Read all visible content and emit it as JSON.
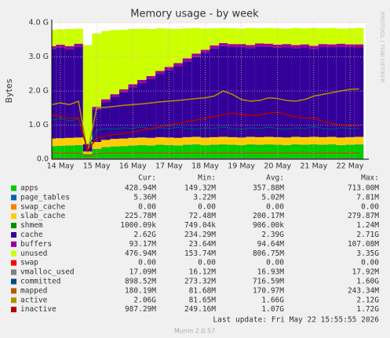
{
  "chart_data": {
    "type": "area",
    "title": "Memory usage - by week",
    "y_label": "Bytes",
    "side_note": "RRDTOOL / TOBI OETIKER",
    "footer": "Last update: Fri May 22 15:55:55 2026",
    "version": "Munin 2.0.57",
    "stat_headers": [
      "Cur:",
      "Min:",
      "Avg:",
      "Max:"
    ],
    "categories": [
      null,
      "14 May",
      null,
      null,
      null,
      "15 May",
      null,
      null,
      null,
      "16 May",
      null,
      null,
      null,
      "17 May",
      null,
      null,
      null,
      "18 May",
      null,
      null,
      null,
      "19 May",
      null,
      null,
      null,
      "20 May",
      null,
      null,
      null,
      "21 May",
      null,
      null,
      null,
      "22 May",
      null
    ],
    "ylim": [
      0,
      4
    ],
    "yticks": [
      {
        "value": 0,
        "label": "0.0"
      },
      {
        "value": 1,
        "label": "1.0 G"
      },
      {
        "value": 2,
        "label": "2.0 G"
      },
      {
        "value": 3,
        "label": "3.0 G"
      },
      {
        "value": 4,
        "label": "4.0 G"
      }
    ],
    "grid": true,
    "series": [
      {
        "name": "apps",
        "style": "area",
        "color": "#00cc00",
        "stats": [
          "428.94M",
          "149.32M",
          "357.88M",
          "713.00M"
        ],
        "values": [
          0.38,
          0.39,
          0.4,
          0.41,
          0.15,
          0.3,
          0.35,
          0.37,
          0.38,
          0.4,
          0.41,
          0.4,
          0.42,
          0.41,
          0.4,
          0.42,
          0.43,
          0.41,
          0.42,
          0.43,
          0.42,
          0.41,
          0.43,
          0.42,
          0.43,
          0.42,
          0.41,
          0.43,
          0.42,
          0.43,
          0.42,
          0.43,
          0.41,
          0.42,
          0.43
        ]
      },
      {
        "name": "page_tables",
        "style": "area",
        "color": "#0066b3",
        "stats": [
          "5.36M",
          "3.22M",
          "5.02M",
          "7.81M"
        ],
        "values": [
          0.005,
          0.005,
          0.005,
          0.005,
          0.005,
          0.005,
          0.005,
          0.005,
          0.005,
          0.005,
          0.005,
          0.005,
          0.005,
          0.005,
          0.005,
          0.005,
          0.005,
          0.005,
          0.005,
          0.005,
          0.005,
          0.005,
          0.005,
          0.005,
          0.005,
          0.005,
          0.005,
          0.005,
          0.005,
          0.005,
          0.005,
          0.005,
          0.005,
          0.005,
          0.005
        ]
      },
      {
        "name": "swap_cache",
        "style": "area",
        "color": "#ff8000",
        "stats": [
          "0.00",
          "0.00",
          "0.00",
          "0.00"
        ],
        "values": [
          0,
          0,
          0,
          0,
          0,
          0,
          0,
          0,
          0,
          0,
          0,
          0,
          0,
          0,
          0,
          0,
          0,
          0,
          0,
          0,
          0,
          0,
          0,
          0,
          0,
          0,
          0,
          0,
          0,
          0,
          0,
          0,
          0,
          0,
          0
        ]
      },
      {
        "name": "slab_cache",
        "style": "area",
        "color": "#ffcc00",
        "stats": [
          "225.78M",
          "72.48M",
          "200.17M",
          "279.87M"
        ],
        "values": [
          0.22,
          0.22,
          0.22,
          0.22,
          0.07,
          0.2,
          0.21,
          0.22,
          0.22,
          0.22,
          0.22,
          0.22,
          0.22,
          0.22,
          0.22,
          0.22,
          0.22,
          0.22,
          0.22,
          0.22,
          0.22,
          0.22,
          0.22,
          0.22,
          0.22,
          0.22,
          0.22,
          0.22,
          0.22,
          0.22,
          0.22,
          0.22,
          0.22,
          0.22,
          0.22
        ]
      },
      {
        "name": "shmem",
        "style": "area",
        "color": "#008f00",
        "stats": [
          "1000.09k",
          "749.04k",
          "906.00k",
          "1.24M"
        ],
        "values": [
          0.001,
          0.001,
          0.001,
          0.001,
          0.001,
          0.001,
          0.001,
          0.001,
          0.001,
          0.001,
          0.001,
          0.001,
          0.001,
          0.001,
          0.001,
          0.001,
          0.001,
          0.001,
          0.001,
          0.001,
          0.001,
          0.001,
          0.001,
          0.001,
          0.001,
          0.001,
          0.001,
          0.001,
          0.001,
          0.001,
          0.001,
          0.001,
          0.001,
          0.001,
          0.001
        ]
      },
      {
        "name": "cache",
        "style": "area",
        "color": "#330099",
        "stats": [
          "2.62G",
          "234.29M",
          "2.39G",
          "2.71G"
        ],
        "values": [
          2.62,
          2.65,
          2.6,
          2.66,
          0.2,
          0.95,
          1.1,
          1.22,
          1.35,
          1.48,
          1.6,
          1.72,
          1.85,
          1.98,
          2.1,
          2.22,
          2.35,
          2.48,
          2.6,
          2.66,
          2.64,
          2.65,
          2.6,
          2.66,
          2.64,
          2.62,
          2.65,
          2.6,
          2.63,
          2.58,
          2.64,
          2.62,
          2.66,
          2.63,
          2.62
        ]
      },
      {
        "name": "buffers",
        "style": "area",
        "color": "#990099",
        "stats": [
          "93.17M",
          "23.64M",
          "94.64M",
          "107.08M"
        ],
        "values": [
          0.09,
          0.09,
          0.09,
          0.09,
          0.02,
          0.08,
          0.09,
          0.09,
          0.09,
          0.09,
          0.09,
          0.09,
          0.09,
          0.09,
          0.09,
          0.09,
          0.09,
          0.09,
          0.09,
          0.09,
          0.09,
          0.09,
          0.09,
          0.09,
          0.09,
          0.09,
          0.09,
          0.09,
          0.09,
          0.09,
          0.09,
          0.09,
          0.09,
          0.09,
          0.09
        ]
      },
      {
        "name": "unused",
        "style": "area",
        "color": "#ccff00",
        "stats": [
          "476.94M",
          "153.74M",
          "806.75M",
          "3.35G"
        ],
        "values": [
          0.48,
          0.45,
          0.5,
          0.44,
          2.9,
          2.15,
          2.0,
          1.88,
          1.75,
          1.62,
          1.5,
          1.38,
          1.25,
          1.12,
          1.0,
          0.88,
          0.75,
          0.62,
          0.5,
          0.44,
          0.46,
          0.45,
          0.5,
          0.44,
          0.46,
          0.48,
          0.45,
          0.5,
          0.47,
          0.52,
          0.46,
          0.48,
          0.44,
          0.47,
          0.48
        ]
      },
      {
        "name": "swap",
        "style": "area",
        "color": "#ff0000",
        "stats": [
          "0.00",
          "0.00",
          "0.00",
          "0.00"
        ],
        "values": [
          0,
          0,
          0,
          0,
          0,
          0,
          0,
          0,
          0,
          0,
          0,
          0,
          0,
          0,
          0,
          0,
          0,
          0,
          0,
          0,
          0,
          0,
          0,
          0,
          0,
          0,
          0,
          0,
          0,
          0,
          0,
          0,
          0,
          0,
          0
        ]
      },
      {
        "name": "vmalloc_used",
        "style": "line",
        "color": "#808080",
        "stats": [
          "17.09M",
          "16.12M",
          "16.93M",
          "17.92M"
        ],
        "values": [
          0.017,
          0.017,
          0.017,
          0.017,
          0.017,
          0.017,
          0.017,
          0.017,
          0.017,
          0.017,
          0.017,
          0.017,
          0.017,
          0.017,
          0.017,
          0.017,
          0.017,
          0.017,
          0.017,
          0.017,
          0.017,
          0.017,
          0.017,
          0.017,
          0.017,
          0.017,
          0.017,
          0.017,
          0.017,
          0.017,
          0.017,
          0.017,
          0.017,
          0.017,
          0.017
        ]
      },
      {
        "name": "committed",
        "style": "line",
        "color": "#00487d",
        "stats": [
          "898.52M",
          "273.32M",
          "716.59M",
          "1.60G"
        ],
        "values": [
          1.15,
          1.2,
          1.12,
          1.18,
          0.27,
          0.85,
          0.9,
          0.88,
          0.92,
          0.9,
          0.95,
          0.88,
          0.92,
          0.9,
          0.94,
          0.9,
          0.88,
          0.92,
          0.9,
          0.95,
          0.9,
          0.88,
          0.92,
          0.9,
          0.94,
          0.9,
          0.88,
          0.92,
          0.9,
          0.95,
          0.9,
          0.88,
          0.92,
          0.9,
          0.9
        ]
      },
      {
        "name": "mapped",
        "style": "line",
        "color": "#b35a00",
        "stats": [
          "180.19M",
          "81.68M",
          "170.97M",
          "243.34M"
        ],
        "values": [
          0.18,
          0.18,
          0.18,
          0.18,
          0.08,
          0.17,
          0.18,
          0.18,
          0.18,
          0.18,
          0.18,
          0.18,
          0.18,
          0.18,
          0.18,
          0.18,
          0.18,
          0.18,
          0.18,
          0.18,
          0.18,
          0.18,
          0.18,
          0.18,
          0.18,
          0.18,
          0.18,
          0.18,
          0.18,
          0.18,
          0.18,
          0.18,
          0.18,
          0.18,
          0.18
        ]
      },
      {
        "name": "active",
        "style": "line",
        "color": "#b38f00",
        "stats": [
          "2.06G",
          "81.65M",
          "1.66G",
          "2.12G"
        ],
        "values": [
          1.6,
          1.65,
          1.6,
          1.7,
          0.2,
          1.5,
          1.52,
          1.55,
          1.58,
          1.6,
          1.62,
          1.65,
          1.68,
          1.7,
          1.72,
          1.75,
          1.78,
          1.8,
          1.85,
          2.0,
          1.9,
          1.75,
          1.7,
          1.72,
          1.8,
          1.78,
          1.72,
          1.7,
          1.75,
          1.85,
          1.9,
          1.95,
          2.0,
          2.05,
          2.06
        ]
      },
      {
        "name": "inactive",
        "style": "line",
        "color": "#b30000",
        "stats": [
          "987.29M",
          "249.16M",
          "1.07G",
          "1.72G"
        ],
        "values": [
          1.3,
          1.25,
          1.2,
          1.22,
          0.25,
          0.62,
          0.68,
          0.72,
          0.75,
          0.8,
          0.85,
          0.9,
          0.95,
          1.0,
          1.05,
          1.1,
          1.15,
          1.2,
          1.25,
          1.3,
          1.35,
          1.32,
          1.28,
          1.3,
          1.35,
          1.38,
          1.3,
          1.25,
          1.2,
          1.22,
          1.1,
          1.05,
          1.0,
          0.98,
          0.99
        ]
      }
    ]
  }
}
